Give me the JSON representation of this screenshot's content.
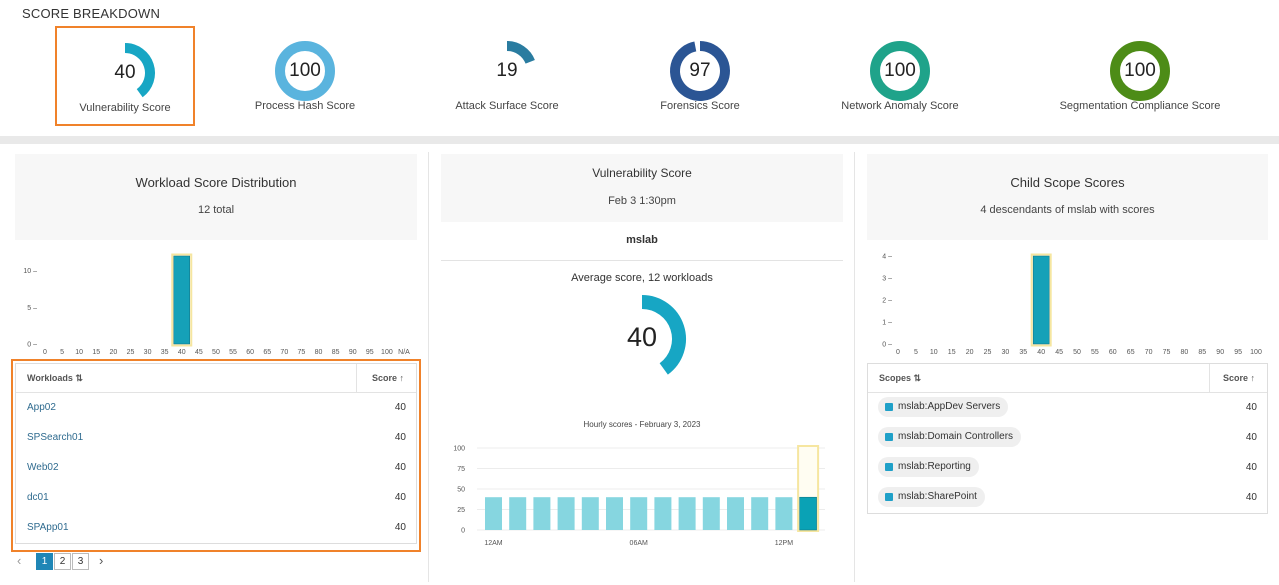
{
  "header": {
    "title": "SCORE BREAKDOWN"
  },
  "scores": [
    {
      "label": "Vulnerability Score",
      "value": "40",
      "fraction": 0.4,
      "color": "#17a6c4",
      "selected": true
    },
    {
      "label": "Process Hash Score",
      "value": "100",
      "fraction": 1.0,
      "color": "#5ab4de",
      "selected": false
    },
    {
      "label": "Attack Surface Score",
      "value": "19",
      "fraction": 0.19,
      "color": "#2a7ca0",
      "selected": false
    },
    {
      "label": "Forensics Score",
      "value": "97",
      "fraction": 0.97,
      "color": "#2b5594",
      "selected": false
    },
    {
      "label": "Network Anomaly Score",
      "value": "100",
      "fraction": 1.0,
      "color": "#1fa38a",
      "selected": false
    },
    {
      "label": "Segmentation Compliance Score",
      "value": "100",
      "fraction": 1.0,
      "color": "#4d8c17",
      "selected": false
    }
  ],
  "workload_panel": {
    "title": "Workload Score Distribution",
    "subtitle": "12 total",
    "col_name": "Workloads",
    "col_score": "Score",
    "rows": [
      {
        "name": "App02",
        "score": "40"
      },
      {
        "name": "SPSearch01",
        "score": "40"
      },
      {
        "name": "Web02",
        "score": "40"
      },
      {
        "name": "dc01",
        "score": "40"
      },
      {
        "name": "SPApp01",
        "score": "40"
      }
    ],
    "pages": [
      "1",
      "2",
      "3"
    ],
    "prev": "‹",
    "next": "›"
  },
  "vuln_panel": {
    "title": "Vulnerability Score",
    "date": "Feb 3 1:30pm",
    "scope": "mslab",
    "avg_label": "Average score, 12 workloads",
    "avg_value": "40",
    "avg_fraction": 0.4,
    "hourly_title": "Hourly scores - February 3, 2023"
  },
  "child_panel": {
    "title": "Child Scope Scores",
    "subtitle": "4 descendants of mslab with scores",
    "col_name": "Scopes",
    "col_score": "Score",
    "rows": [
      {
        "name": "mslab:AppDev Servers",
        "score": "40"
      },
      {
        "name": "mslab:Domain Controllers",
        "score": "40"
      },
      {
        "name": "mslab:Reporting",
        "score": "40"
      },
      {
        "name": "mslab:SharePoint",
        "score": "40"
      }
    ]
  },
  "chart_data": [
    {
      "type": "bar",
      "name": "workload-distribution",
      "categories": [
        "0",
        "5",
        "10",
        "15",
        "20",
        "25",
        "30",
        "35",
        "40",
        "45",
        "50",
        "55",
        "60",
        "65",
        "70",
        "75",
        "80",
        "85",
        "90",
        "95",
        "100",
        "N/A"
      ],
      "values": [
        0,
        0,
        0,
        0,
        0,
        0,
        0,
        0,
        12,
        0,
        0,
        0,
        0,
        0,
        0,
        0,
        0,
        0,
        0,
        0,
        0,
        0
      ],
      "highlight_index": 8,
      "yticks": [
        "0",
        "5",
        "10"
      ],
      "ylim": [
        0,
        12
      ]
    },
    {
      "type": "bar",
      "name": "hourly-scores",
      "title": "Hourly scores - February 3, 2023",
      "categories": [
        "12AM",
        "1AM",
        "2AM",
        "3AM",
        "4AM",
        "5AM",
        "06AM",
        "7AM",
        "8AM",
        "9AM",
        "10AM",
        "11AM",
        "12PM",
        "1PM"
      ],
      "values": [
        40,
        40,
        40,
        40,
        40,
        40,
        40,
        40,
        40,
        40,
        40,
        40,
        40,
        40
      ],
      "xtick_labels": [
        "12AM",
        "06AM",
        "12PM"
      ],
      "yticks": [
        "0",
        "25",
        "50",
        "75",
        "100"
      ],
      "ylim": [
        0,
        100
      ],
      "highlight_index": 13
    },
    {
      "type": "bar",
      "name": "child-scope-distribution",
      "categories": [
        "0",
        "5",
        "10",
        "15",
        "20",
        "25",
        "30",
        "35",
        "40",
        "45",
        "50",
        "55",
        "60",
        "65",
        "70",
        "75",
        "80",
        "85",
        "90",
        "95",
        "100"
      ],
      "values": [
        0,
        0,
        0,
        0,
        0,
        0,
        0,
        0,
        4,
        0,
        0,
        0,
        0,
        0,
        0,
        0,
        0,
        0,
        0,
        0,
        0
      ],
      "highlight_index": 8,
      "yticks": [
        "0",
        "1",
        "2",
        "3",
        "4"
      ],
      "ylim": [
        0,
        4
      ]
    }
  ]
}
